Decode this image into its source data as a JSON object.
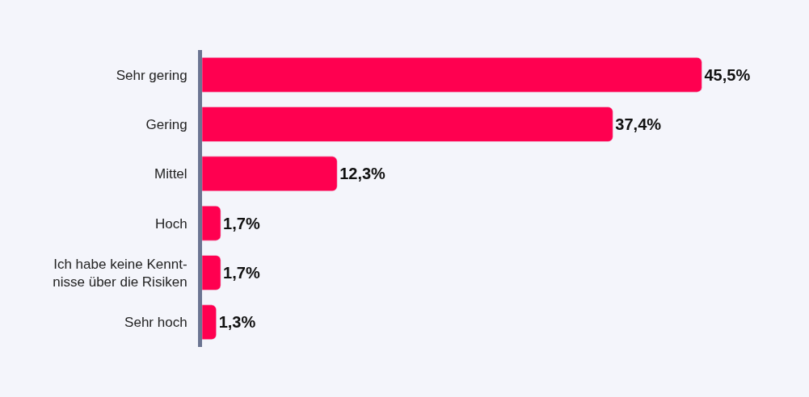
{
  "chart_data": {
    "type": "bar",
    "orientation": "horizontal",
    "categories": [
      "Sehr gering",
      "Gering",
      "Mittel",
      "Hoch",
      "Ich habe keine Kennt-\nnisse über die Risiken",
      "Sehr hoch"
    ],
    "values": [
      45.5,
      37.4,
      12.3,
      1.7,
      1.7,
      1.3
    ],
    "value_labels": [
      "45,5%",
      "37,4%",
      "12,3%",
      "1,7%",
      "1,7%",
      "1,3%"
    ],
    "color": "#ff0050",
    "legend": false
  }
}
